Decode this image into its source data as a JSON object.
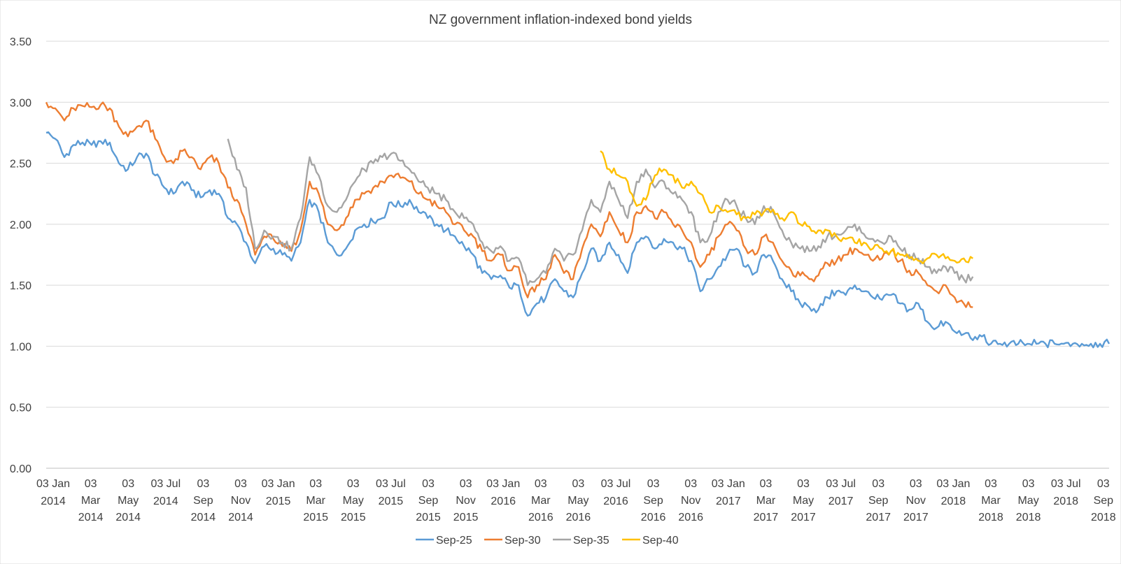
{
  "chart_data": {
    "type": "line",
    "title": "NZ government inflation-indexed bond yields",
    "xlabel": "",
    "ylabel": "",
    "ylim": [
      0,
      3.5
    ],
    "ytick_labels": [
      "0.00",
      "0.50",
      "1.00",
      "1.50",
      "2.00",
      "2.50",
      "3.00",
      "3.50"
    ],
    "ytick_values": [
      0,
      0.5,
      1.0,
      1.5,
      2.0,
      2.5,
      3.0,
      3.5
    ],
    "grid": true,
    "legend_position": "bottom",
    "x_start": "2014-01-03",
    "x_end": "2018-10-31",
    "xtick_labels": [
      [
        "03 Jan",
        "2014"
      ],
      [
        "03",
        "Mar",
        "2014"
      ],
      [
        "03",
        "May",
        "2014"
      ],
      [
        "03 Jul",
        "2014"
      ],
      [
        "03",
        "Sep",
        "2014"
      ],
      [
        "03",
        "Nov",
        "2014"
      ],
      [
        "03 Jan",
        "2015"
      ],
      [
        "03",
        "Mar",
        "2015"
      ],
      [
        "03",
        "May",
        "2015"
      ],
      [
        "03 Jul",
        "2015"
      ],
      [
        "03",
        "Sep",
        "2015"
      ],
      [
        "03",
        "Nov",
        "2015"
      ],
      [
        "03 Jan",
        "2016"
      ],
      [
        "03",
        "Mar",
        "2016"
      ],
      [
        "03",
        "May",
        "2016"
      ],
      [
        "03 Jul",
        "2016"
      ],
      [
        "03",
        "Sep",
        "2016"
      ],
      [
        "03",
        "Nov",
        "2016"
      ],
      [
        "03 Jan",
        "2017"
      ],
      [
        "03",
        "Mar",
        "2017"
      ],
      [
        "03",
        "May",
        "2017"
      ],
      [
        "03 Jul",
        "2017"
      ],
      [
        "03",
        "Sep",
        "2017"
      ],
      [
        "03",
        "Nov",
        "2017"
      ],
      [
        "03 Jan",
        "2018"
      ],
      [
        "03",
        "Mar",
        "2018"
      ],
      [
        "03",
        "May",
        "2018"
      ],
      [
        "03 Jul",
        "2018"
      ],
      [
        "03",
        "Sep",
        "2018"
      ]
    ],
    "series": [
      {
        "name": "Sep-25",
        "color": "#5B9BD5",
        "x": [
          0,
          1,
          2,
          3,
          4,
          5,
          6,
          7,
          8,
          9,
          10,
          11,
          12,
          13,
          14,
          15,
          16,
          17,
          18,
          19,
          20,
          21,
          22,
          23,
          24,
          25,
          26,
          27,
          28,
          29,
          30,
          31,
          32,
          33,
          34,
          35,
          36,
          37,
          38,
          39,
          40,
          41,
          42,
          43,
          44,
          45,
          46,
          47,
          48,
          49,
          50,
          51,
          52,
          53,
          54,
          55,
          56,
          57,
          58,
          59,
          60,
          61,
          62,
          63,
          64,
          65,
          66,
          67,
          68,
          69,
          70,
          71,
          72,
          73,
          74,
          75,
          76,
          77,
          78,
          79,
          80,
          81,
          82,
          83,
          84,
          85,
          86,
          87,
          88,
          89,
          90,
          91,
          92,
          93,
          94,
          95,
          96,
          97,
          98,
          99,
          100,
          101,
          102,
          103,
          104,
          105,
          106,
          107,
          108,
          109,
          110,
          111,
          112,
          113,
          114,
          115,
          116,
          117
        ],
        "values": [
          2.75,
          2.7,
          2.55,
          2.65,
          2.67,
          2.65,
          2.68,
          2.67,
          2.5,
          2.45,
          2.55,
          2.58,
          2.4,
          2.3,
          2.25,
          2.35,
          2.28,
          2.22,
          2.28,
          2.25,
          2.05,
          2.0,
          1.85,
          1.68,
          1.82,
          1.8,
          1.75,
          1.7,
          1.85,
          2.2,
          2.1,
          1.85,
          1.75,
          1.8,
          1.95,
          2.0,
          2.02,
          2.05,
          2.18,
          2.15,
          2.2,
          2.1,
          2.05,
          2.0,
          1.95,
          1.9,
          1.82,
          1.75,
          1.6,
          1.55,
          1.58,
          1.48,
          1.5,
          1.25,
          1.35,
          1.4,
          1.55,
          1.45,
          1.4,
          1.6,
          1.8,
          1.7,
          1.85,
          1.75,
          1.6,
          1.85,
          1.9,
          1.8,
          1.88,
          1.85,
          1.8,
          1.7,
          1.45,
          1.55,
          1.65,
          1.75,
          1.8,
          1.65,
          1.6,
          1.75,
          1.7,
          1.55,
          1.45,
          1.35,
          1.32,
          1.3,
          1.4,
          1.45,
          1.42,
          1.5,
          1.45,
          1.4,
          1.38,
          1.42,
          1.35,
          1.3,
          1.35,
          1.2,
          1.15,
          1.2,
          1.12,
          1.1,
          1.05,
          1.08,
          1.02,
          1.02,
          1.02,
          1.02,
          1.02,
          1.02,
          1.02,
          1.02,
          1.02,
          1.02,
          1.02,
          1.02,
          1.02,
          1.02
        ]
      },
      {
        "name": "Sep-30",
        "color": "#ED7D31",
        "x": [
          0,
          1,
          2,
          3,
          4,
          5,
          6,
          7,
          8,
          9,
          10,
          11,
          12,
          13,
          14,
          15,
          16,
          17,
          18,
          19,
          20,
          21,
          22,
          23,
          24,
          25,
          26,
          27,
          28,
          29,
          30,
          31,
          32,
          33,
          34,
          35,
          36,
          37,
          38,
          39,
          40,
          41,
          42,
          43,
          44,
          45,
          46,
          47,
          48,
          49,
          50,
          51,
          52,
          53,
          54,
          55,
          56,
          57,
          58,
          59,
          60,
          61,
          62,
          63,
          64,
          65,
          66,
          67,
          68,
          69,
          70,
          71,
          72,
          73,
          74,
          75,
          76,
          77,
          78,
          79,
          80,
          81,
          82,
          83,
          84,
          85,
          86,
          87,
          88,
          89,
          90,
          91,
          92,
          93,
          94,
          95,
          96,
          97,
          98,
          99,
          100,
          101,
          102
        ],
        "values": [
          3.0,
          2.95,
          2.85,
          2.95,
          2.97,
          2.96,
          2.98,
          2.95,
          2.8,
          2.72,
          2.8,
          2.85,
          2.7,
          2.55,
          2.5,
          2.6,
          2.55,
          2.45,
          2.55,
          2.5,
          2.3,
          2.2,
          2.0,
          1.75,
          1.9,
          1.88,
          1.82,
          1.78,
          1.95,
          2.35,
          2.25,
          2.0,
          1.95,
          2.05,
          2.2,
          2.25,
          2.3,
          2.35,
          2.4,
          2.38,
          2.35,
          2.25,
          2.2,
          2.15,
          2.1,
          2.0,
          1.95,
          1.9,
          1.78,
          1.7,
          1.75,
          1.62,
          1.65,
          1.4,
          1.5,
          1.55,
          1.75,
          1.6,
          1.55,
          1.8,
          2.0,
          1.9,
          2.1,
          1.95,
          1.85,
          2.1,
          2.15,
          2.05,
          2.1,
          2.0,
          1.95,
          1.85,
          1.65,
          1.75,
          1.9,
          2.0,
          1.95,
          1.8,
          1.75,
          1.9,
          1.85,
          1.7,
          1.62,
          1.58,
          1.55,
          1.58,
          1.68,
          1.7,
          1.75,
          1.8,
          1.75,
          1.7,
          1.72,
          1.78,
          1.7,
          1.62,
          1.6,
          1.5,
          1.45,
          1.5,
          1.4,
          1.35,
          1.32
        ]
      },
      {
        "name": "Sep-35",
        "color": "#A5A5A5",
        "x": [
          20,
          21,
          22,
          23,
          24,
          25,
          26,
          27,
          28,
          29,
          30,
          31,
          32,
          33,
          34,
          35,
          36,
          37,
          38,
          39,
          40,
          41,
          42,
          43,
          44,
          45,
          46,
          47,
          48,
          49,
          50,
          51,
          52,
          53,
          54,
          55,
          56,
          57,
          58,
          59,
          60,
          61,
          62,
          63,
          64,
          65,
          66,
          67,
          68,
          69,
          70,
          71,
          72,
          73,
          74,
          75,
          76,
          77,
          78,
          79,
          80,
          81,
          82,
          83,
          84,
          85,
          86,
          87,
          88,
          89,
          90,
          91,
          92,
          93,
          94,
          95,
          96,
          97,
          98,
          99,
          100,
          101,
          102
        ],
        "values": [
          2.7,
          2.45,
          2.3,
          1.8,
          1.95,
          1.9,
          1.85,
          1.8,
          2.05,
          2.55,
          2.4,
          2.15,
          2.1,
          2.2,
          2.35,
          2.45,
          2.5,
          2.55,
          2.58,
          2.52,
          2.45,
          2.35,
          2.3,
          2.25,
          2.2,
          2.1,
          2.05,
          2.0,
          1.85,
          1.78,
          1.82,
          1.7,
          1.72,
          1.5,
          1.55,
          1.6,
          1.8,
          1.7,
          1.75,
          1.95,
          2.2,
          2.1,
          2.35,
          2.2,
          2.05,
          2.35,
          2.45,
          2.3,
          2.35,
          2.25,
          2.2,
          2.1,
          1.85,
          1.9,
          2.1,
          2.2,
          2.15,
          2.05,
          2.0,
          2.15,
          2.1,
          1.95,
          1.85,
          1.8,
          1.78,
          1.82,
          1.9,
          1.92,
          1.95,
          2.0,
          1.92,
          1.88,
          1.85,
          1.9,
          1.8,
          1.75,
          1.72,
          1.65,
          1.6,
          1.65,
          1.6,
          1.55,
          1.57
        ]
      },
      {
        "name": "Sep-40",
        "color": "#FFC000",
        "x": [
          61,
          62,
          63,
          64,
          65,
          66,
          67,
          68,
          69,
          70,
          71,
          72,
          73,
          74,
          75,
          76,
          77,
          78,
          79,
          80,
          81,
          82,
          83,
          84,
          85,
          86,
          87,
          88,
          89,
          90,
          91,
          92,
          93,
          94,
          95,
          96,
          97,
          98,
          99,
          100,
          101,
          102
        ],
        "values": [
          2.6,
          2.45,
          2.4,
          2.35,
          2.15,
          2.2,
          2.4,
          2.45,
          2.4,
          2.3,
          2.35,
          2.25,
          2.1,
          2.15,
          2.1,
          2.08,
          2.05,
          2.08,
          2.1,
          2.12,
          2.05,
          2.1,
          2.0,
          1.98,
          1.95,
          1.95,
          1.9,
          1.88,
          1.85,
          1.85,
          1.8,
          1.8,
          1.78,
          1.75,
          1.72,
          1.7,
          1.72,
          1.75,
          1.72,
          1.7,
          1.72,
          1.72
        ]
      }
    ]
  }
}
